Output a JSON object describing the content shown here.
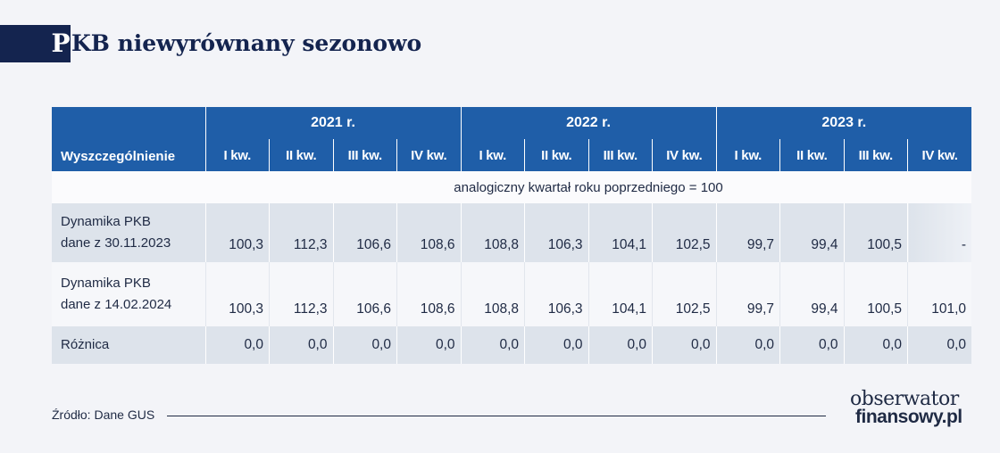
{
  "title": {
    "first_letter": "P",
    "rest": "KB niewyrównany sezonowo"
  },
  "chart_data": {
    "type": "table",
    "row_header_label": "Wyszczególnienie",
    "years": [
      "2021 r.",
      "2022 r.",
      "2023 r."
    ],
    "quarters": [
      "I kw.",
      "II kw.",
      "III kw.",
      "IV kw.",
      "I kw.",
      "II kw.",
      "III kw.",
      "IV kw.",
      "I kw.",
      "II kw.",
      "III kw.",
      "IV kw."
    ],
    "note": "analogiczny kwartał roku poprzedniego = 100",
    "rows": [
      {
        "label_line1": "Dynamika PKB",
        "label_line2": "dane z 30.11.2023",
        "values": [
          "100,3",
          "112,3",
          "106,6",
          "108,6",
          "108,8",
          "106,3",
          "104,1",
          "102,5",
          "99,7",
          "99,4",
          "100,5",
          "-"
        ]
      },
      {
        "label_line1": "Dynamika PKB",
        "label_line2": "dane z 14.02.2024",
        "values": [
          "100,3",
          "112,3",
          "106,6",
          "108,6",
          "108,8",
          "106,3",
          "104,1",
          "102,5",
          "99,7",
          "99,4",
          "100,5",
          "101,0"
        ]
      },
      {
        "label_line1": "Różnica",
        "label_line2": "",
        "values": [
          "0,0",
          "0,0",
          "0,0",
          "0,0",
          "0,0",
          "0,0",
          "0,0",
          "0,0",
          "0,0",
          "0,0",
          "0,0",
          "0,0"
        ]
      }
    ]
  },
  "footer": {
    "source": "Źródło: Dane GUS",
    "logo_line1": "obserwator",
    "logo_line2": "finansowy.pl"
  },
  "colors": {
    "header_blue": "#1f5ea8",
    "title_navy": "#14244f",
    "row_shade": "#dde3eb",
    "background": "#f3f4f8"
  }
}
